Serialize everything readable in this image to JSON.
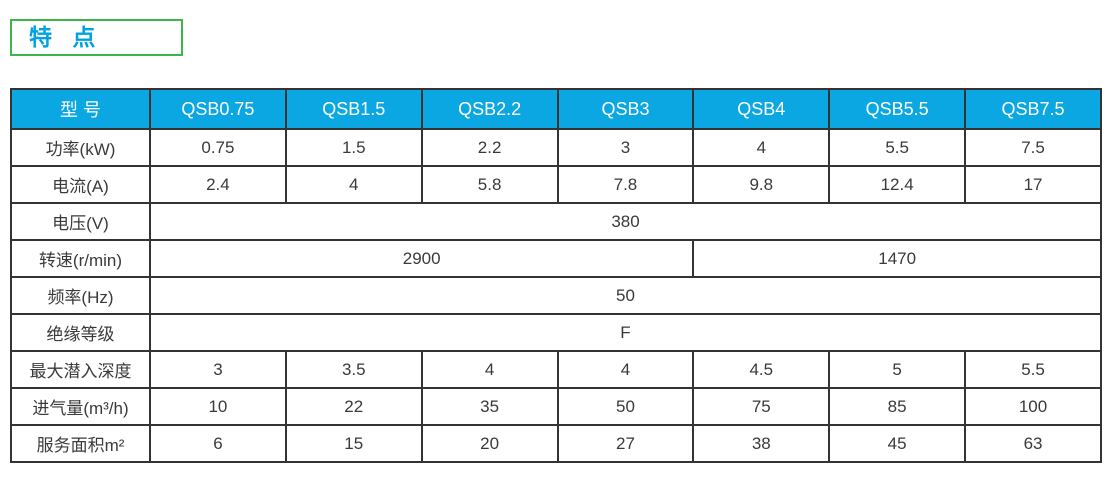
{
  "title_box": {
    "label": "特 点"
  },
  "table": {
    "header": {
      "model_label": "型 号",
      "models": [
        "QSB0.75",
        "QSB1.5",
        "QSB2.2",
        "QSB3",
        "QSB4",
        "QSB5.5",
        "QSB7.5"
      ]
    },
    "rows": [
      {
        "label": "功率(kW)",
        "cells": [
          "0.75",
          "1.5",
          "2.2",
          "3",
          "4",
          "5.5",
          "7.5"
        ]
      },
      {
        "label": "电流(A)",
        "cells": [
          "2.4",
          "4",
          "5.8",
          "7.8",
          "9.8",
          "12.4",
          "17"
        ]
      },
      {
        "label": "电压(V)",
        "cells": [
          "380"
        ]
      },
      {
        "label": "转速(r/min)",
        "cells": [
          "2900",
          "1470"
        ]
      },
      {
        "label": "频率(Hz)",
        "cells": [
          "50"
        ]
      },
      {
        "label": "绝缘等级",
        "cells": [
          "F"
        ]
      },
      {
        "label": "最大潜入深度",
        "cells": [
          "3",
          "3.5",
          "4",
          "4",
          "4.5",
          "5",
          "5.5"
        ]
      },
      {
        "label": "进气量(m³/h)",
        "cells": [
          "10",
          "22",
          "35",
          "50",
          "75",
          "85",
          "100"
        ]
      },
      {
        "label": "服务面积m²",
        "cells": [
          "6",
          "15",
          "20",
          "27",
          "38",
          "45",
          "63"
        ]
      }
    ]
  },
  "colors": {
    "header_background": "#0aa7e2",
    "title_text": "#00a3e0",
    "title_border_green": "#3cb54a",
    "table_border": "#333333",
    "body_text": "#3a3a3a"
  }
}
